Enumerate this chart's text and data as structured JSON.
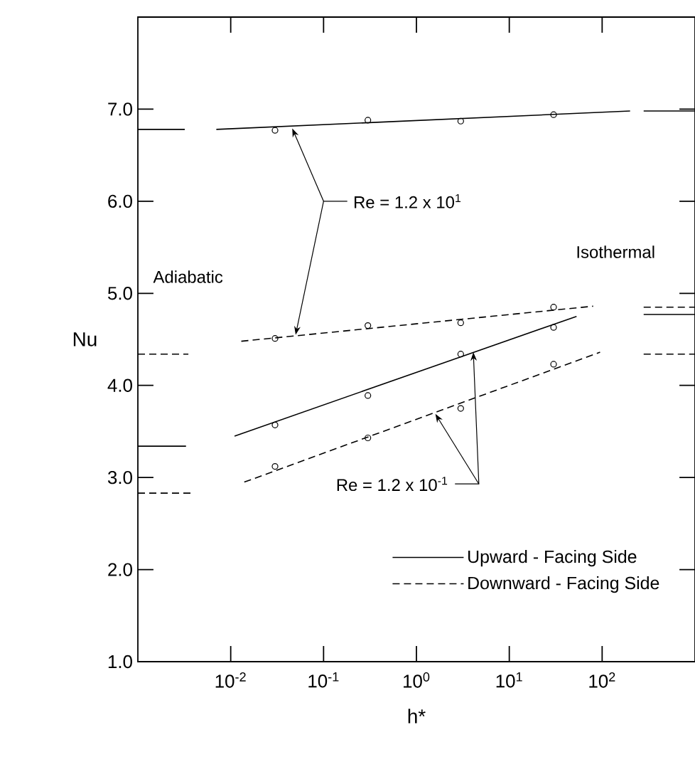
{
  "chart_data": {
    "type": "line",
    "xlabel": "h*",
    "ylabel": "Nu",
    "log": "x",
    "legend": "bottom right",
    "xlim": [
      0.001,
      1000
    ],
    "ylim": [
      1,
      8
    ],
    "xticks": [
      {
        "value": 0.01,
        "label": "10$^{-2}$"
      },
      {
        "value": 0.1,
        "label": "10$^{-1}$"
      },
      {
        "value": 1,
        "label": "10$^{0}$"
      },
      {
        "value": 10,
        "label": "10$^{1}$"
      },
      {
        "value": 100,
        "label": "10$^{2}$"
      }
    ],
    "yticks": [
      {
        "value": 1,
        "label": "1.0"
      },
      {
        "value": 2,
        "label": "2.0"
      },
      {
        "value": 3,
        "label": "3.0"
      },
      {
        "value": 4,
        "label": "4.0"
      },
      {
        "value": 5,
        "label": "5.0"
      },
      {
        "value": 6,
        "label": "6.0"
      },
      {
        "value": 7,
        "label": "7.0"
      }
    ],
    "annotations": [
      {
        "text": "Re = 1.2 x 10$^{1}$",
        "x": 0.046,
        "y": 6.79
      },
      {
        "text": "Re = 1.2 x 10$^{-1}$",
        "x": 4.1,
        "y": 4.36
      },
      "Adiabatic",
      "Isothermal"
    ],
    "series": [
      {
        "type": "scatter",
        "marker": "circle",
        "color": "#000000",
        "x": [
          0.03,
          0.3,
          3,
          30
        ],
        "values": [
          6.77,
          6.88,
          6.87,
          6.94
        ]
      },
      {
        "type": "scatter",
        "marker": "circle",
        "color": "#000000",
        "x": [
          0.03,
          0.3,
          3,
          30
        ],
        "values": [
          4.51,
          4.65,
          4.68,
          4.85
        ]
      },
      {
        "type": "scatter",
        "marker": "circle",
        "color": "#000000",
        "x": [
          0.03,
          0.3,
          3,
          30
        ],
        "values": [
          3.57,
          3.89,
          4.34,
          4.63
        ]
      },
      {
        "type": "scatter",
        "marker": "circle",
        "color": "#000000",
        "x": [
          0.03,
          0.3,
          3,
          30
        ],
        "values": [
          3.12,
          3.43,
          3.75,
          4.23
        ]
      },
      {
        "name": "Upward - Facing Side",
        "line_style": "solid",
        "color": "#000000",
        "x": [
          0.007,
          200
        ],
        "values": [
          6.78,
          6.98
        ]
      },
      {
        "name": "Downward - Facing Side",
        "line_style": "dashed",
        "color": "#000000",
        "x": [
          0.013,
          80
        ],
        "values": [
          4.48,
          4.86
        ]
      },
      {
        "type": "line",
        "line_style": "solid",
        "color": "#000000",
        "x": [
          0.011,
          53
        ],
        "values": [
          3.45,
          4.75
        ]
      },
      {
        "type": "line",
        "line_style": "dashed",
        "color": "#000000",
        "x": [
          0.014,
          95
        ],
        "values": [
          2.95,
          4.36
        ]
      },
      {
        "type": "line",
        "line_style": "solid",
        "color": "#000000",
        "x": [
          0.001,
          0.0032
        ],
        "values": [
          6.78,
          6.78
        ]
      },
      {
        "type": "line",
        "line_style": "dashed",
        "color": "#000000",
        "x": [
          0.001,
          0.0035
        ],
        "values": [
          4.34,
          4.34
        ]
      },
      {
        "type": "line",
        "line_style": "solid",
        "color": "#000000",
        "x": [
          0.001,
          0.0033
        ],
        "values": [
          3.34,
          3.34
        ]
      },
      {
        "type": "line",
        "line_style": "dashed",
        "color": "#000000",
        "x": [
          0.001,
          0.0037
        ],
        "values": [
          2.83,
          2.83
        ]
      },
      {
        "type": "line",
        "line_style": "solid",
        "color": "#000000",
        "x": [
          280,
          1000
        ],
        "values": [
          6.98,
          6.98
        ]
      },
      {
        "type": "line",
        "line_style": "dashed",
        "color": "#000000",
        "x": [
          280,
          1000
        ],
        "values": [
          4.85,
          4.85
        ]
      },
      {
        "type": "line",
        "line_style": "solid",
        "color": "#000000",
        "x": [
          280,
          1000
        ],
        "values": [
          4.77,
          4.77
        ]
      },
      {
        "type": "line",
        "line_style": "dashed",
        "color": "#000000",
        "x": [
          280,
          1000
        ],
        "values": [
          4.34,
          4.34
        ]
      }
    ]
  }
}
